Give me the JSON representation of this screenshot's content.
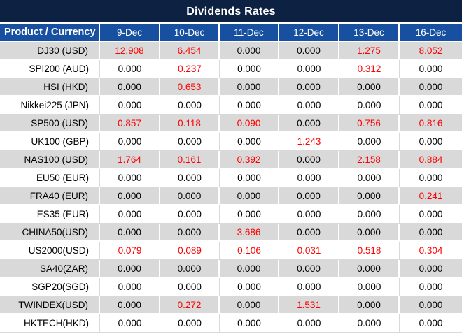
{
  "title": "Dividends Rates",
  "colors": {
    "title_bg": "#0D2142",
    "header_bg": "#1750A0",
    "stripe_gray": "#D9D9D9",
    "highlight_red": "#FF0000",
    "text_black": "#000000"
  },
  "table": {
    "product_header": "Product / Currency",
    "date_columns": [
      "9-Dec",
      "10-Dec",
      "11-Dec",
      "12-Dec",
      "13-Dec",
      "16-Dec"
    ],
    "rows": [
      {
        "product": "DJ30 (USD)",
        "values": [
          "12.908",
          "6.454",
          "0.000",
          "0.000",
          "1.275",
          "8.052"
        ],
        "highlight": [
          true,
          true,
          false,
          false,
          true,
          true
        ]
      },
      {
        "product": "SPI200 (AUD)",
        "values": [
          "0.000",
          "0.237",
          "0.000",
          "0.000",
          "0.312",
          "0.000"
        ],
        "highlight": [
          false,
          true,
          false,
          false,
          true,
          false
        ]
      },
      {
        "product": "HSI (HKD)",
        "values": [
          "0.000",
          "0.653",
          "0.000",
          "0.000",
          "0.000",
          "0.000"
        ],
        "highlight": [
          false,
          true,
          false,
          false,
          false,
          false
        ]
      },
      {
        "product": "Nikkei225 (JPN)",
        "values": [
          "0.000",
          "0.000",
          "0.000",
          "0.000",
          "0.000",
          "0.000"
        ],
        "highlight": [
          false,
          false,
          false,
          false,
          false,
          false
        ]
      },
      {
        "product": "SP500 (USD)",
        "values": [
          "0.857",
          "0.118",
          "0.090",
          "0.000",
          "0.756",
          "0.816"
        ],
        "highlight": [
          true,
          true,
          true,
          false,
          true,
          true
        ]
      },
      {
        "product": "UK100 (GBP)",
        "values": [
          "0.000",
          "0.000",
          "0.000",
          "1.243",
          "0.000",
          "0.000"
        ],
        "highlight": [
          false,
          false,
          false,
          true,
          false,
          false
        ]
      },
      {
        "product": "NAS100 (USD)",
        "values": [
          "1.764",
          "0.161",
          "0.392",
          "0.000",
          "2.158",
          "0.884"
        ],
        "highlight": [
          true,
          true,
          true,
          false,
          true,
          true
        ]
      },
      {
        "product": "EU50 (EUR)",
        "values": [
          "0.000",
          "0.000",
          "0.000",
          "0.000",
          "0.000",
          "0.000"
        ],
        "highlight": [
          false,
          false,
          false,
          false,
          false,
          false
        ]
      },
      {
        "product": "FRA40 (EUR)",
        "values": [
          "0.000",
          "0.000",
          "0.000",
          "0.000",
          "0.000",
          "0.241"
        ],
        "highlight": [
          false,
          false,
          false,
          false,
          false,
          true
        ]
      },
      {
        "product": "ES35 (EUR)",
        "values": [
          "0.000",
          "0.000",
          "0.000",
          "0.000",
          "0.000",
          "0.000"
        ],
        "highlight": [
          false,
          false,
          false,
          false,
          false,
          false
        ]
      },
      {
        "product": "CHINA50(USD)",
        "values": [
          "0.000",
          "0.000",
          "3.686",
          "0.000",
          "0.000",
          "0.000"
        ],
        "highlight": [
          false,
          false,
          true,
          false,
          false,
          false
        ]
      },
      {
        "product": "US2000(USD)",
        "values": [
          "0.079",
          "0.089",
          "0.106",
          "0.031",
          "0.518",
          "0.304"
        ],
        "highlight": [
          true,
          true,
          true,
          true,
          true,
          true
        ]
      },
      {
        "product": "SA40(ZAR)",
        "values": [
          "0.000",
          "0.000",
          "0.000",
          "0.000",
          "0.000",
          "0.000"
        ],
        "highlight": [
          false,
          false,
          false,
          false,
          false,
          false
        ]
      },
      {
        "product": "SGP20(SGD)",
        "values": [
          "0.000",
          "0.000",
          "0.000",
          "0.000",
          "0.000",
          "0.000"
        ],
        "highlight": [
          false,
          false,
          false,
          false,
          false,
          false
        ]
      },
      {
        "product": "TWINDEX(USD)",
        "values": [
          "0.000",
          "0.272",
          "0.000",
          "1.531",
          "0.000",
          "0.000"
        ],
        "highlight": [
          false,
          true,
          false,
          true,
          false,
          false
        ]
      },
      {
        "product": "HKTECH(HKD)",
        "values": [
          "0.000",
          "0.000",
          "0.000",
          "0.000",
          "0.000",
          "0.000"
        ],
        "highlight": [
          false,
          false,
          false,
          false,
          false,
          false
        ]
      }
    ]
  }
}
